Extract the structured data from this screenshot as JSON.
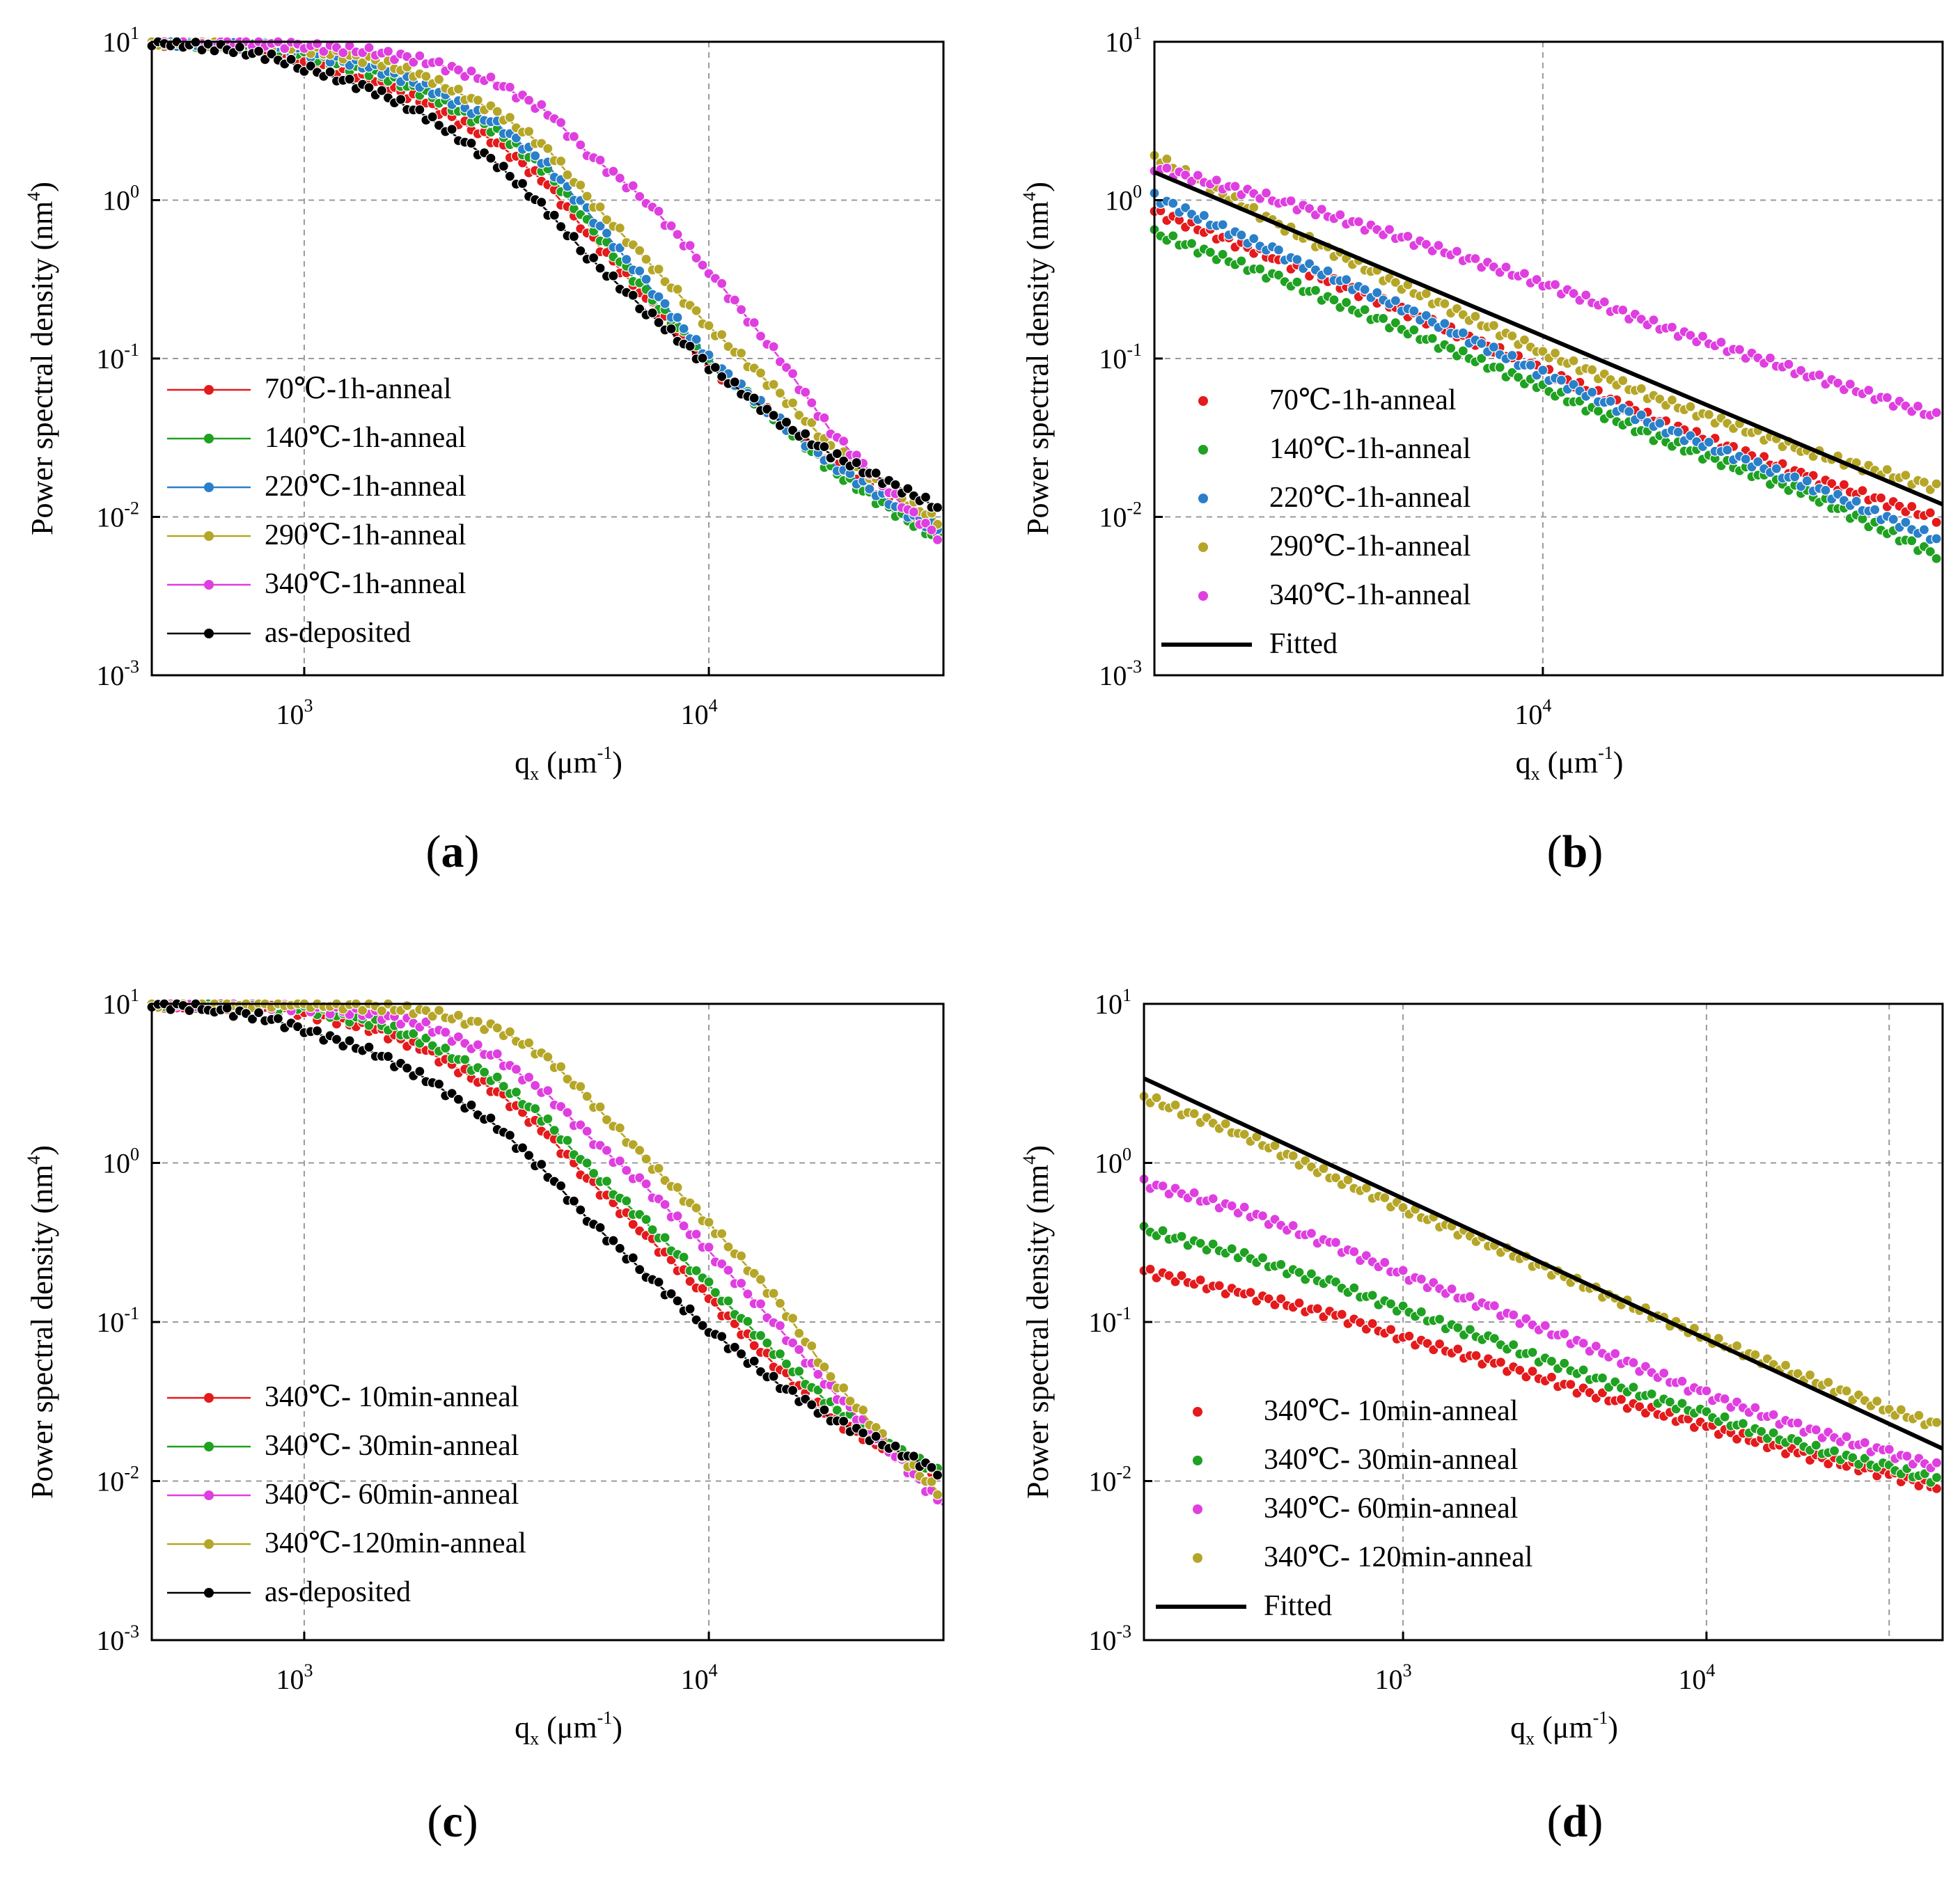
{
  "chart_data": [
    {
      "type": "line",
      "panel": "(a)",
      "title": "",
      "xlabel": "q_x (μm^-1)",
      "ylabel": "Power spectral density (nm^4)",
      "xscale": "log",
      "yscale": "log",
      "xlim": [
        420,
        38000
      ],
      "ylim": [
        0.001,
        10
      ],
      "legend_position": "bottom-left",
      "series": [
        {
          "name": " 70℃-1h-anneal",
          "color": "#e41a1c",
          "style": "line+marker",
          "x": [
            420,
            600,
            800,
            1000,
            1500,
            2000,
            3000,
            4000,
            5000,
            7000,
            10000,
            15000,
            20000,
            30000,
            38000
          ],
          "y": [
            10,
            9.6,
            8.8,
            7.5,
            5.6,
            4.1,
            2.3,
            1.25,
            0.62,
            0.24,
            0.09,
            0.04,
            0.022,
            0.011,
            0.008
          ]
        },
        {
          "name": "140℃-1h-anneal",
          "color": "#1fa121",
          "style": "line+marker",
          "x": [
            420,
            600,
            800,
            1000,
            1500,
            2000,
            3000,
            4000,
            5000,
            7000,
            10000,
            15000,
            20000,
            30000,
            38000
          ],
          "y": [
            10,
            9.7,
            9.1,
            8.2,
            6.3,
            4.7,
            2.7,
            1.5,
            0.72,
            0.26,
            0.095,
            0.04,
            0.02,
            0.01,
            0.007
          ]
        },
        {
          "name": "220℃-1h-anneal",
          "color": "#2a7fc9",
          "style": "line+marker",
          "x": [
            420,
            600,
            800,
            1000,
            1500,
            2000,
            3000,
            4000,
            5000,
            7000,
            10000,
            15000,
            20000,
            30000,
            38000
          ],
          "y": [
            10,
            9.8,
            9.3,
            8.6,
            6.8,
            5.2,
            3.0,
            1.65,
            0.85,
            0.3,
            0.1,
            0.04,
            0.022,
            0.011,
            0.008
          ]
        },
        {
          "name": "290℃-1h-anneal",
          "color": "#b5a628",
          "style": "line+marker",
          "x": [
            420,
            600,
            800,
            1000,
            1500,
            2000,
            3000,
            4000,
            5000,
            7000,
            10000,
            15000,
            20000,
            30000,
            38000
          ],
          "y": [
            10,
            9.9,
            9.5,
            9.0,
            7.6,
            6.0,
            3.6,
            2.1,
            1.05,
            0.42,
            0.16,
            0.06,
            0.028,
            0.013,
            0.009
          ]
        },
        {
          "name": "340℃-1h-anneal",
          "color": "#df3fe0",
          "style": "line+marker",
          "x": [
            420,
            600,
            800,
            1000,
            1500,
            2000,
            3000,
            4000,
            5000,
            7000,
            10000,
            15000,
            20000,
            30000,
            38000
          ],
          "y": [
            10,
            10,
            9.8,
            9.5,
            8.6,
            7.6,
            5.5,
            3.6,
            2.0,
            1.0,
            0.36,
            0.1,
            0.035,
            0.012,
            0.007
          ]
        },
        {
          "name": "as-deposited",
          "color": "#000000",
          "style": "line+marker",
          "x": [
            420,
            600,
            800,
            1000,
            1500,
            2000,
            3000,
            4000,
            5000,
            7000,
            10000,
            15000,
            20000,
            30000,
            38000
          ],
          "y": [
            10,
            9.3,
            8.2,
            6.9,
            4.9,
            3.4,
            1.7,
            0.85,
            0.45,
            0.2,
            0.09,
            0.04,
            0.025,
            0.015,
            0.011
          ]
        }
      ]
    },
    {
      "type": "scatter",
      "panel": "(b)",
      "title": "",
      "xlabel": "q_x (μm^-1)",
      "ylabel": "Power spectral density (nm^4)",
      "xscale": "log",
      "yscale": "log",
      "xlim": [
        2600,
        40000
      ],
      "ylim": [
        0.001,
        10
      ],
      "legend_position": "bottom-left",
      "series": [
        {
          "name": " 70℃-1h-anneal",
          "color": "#e41a1c",
          "style": "marker",
          "x": [
            2600,
            4000,
            6000,
            10000,
            15000,
            25000,
            40000
          ],
          "y": [
            0.85,
            0.42,
            0.21,
            0.085,
            0.04,
            0.018,
            0.0095
          ]
        },
        {
          "name": "140℃-1h-anneal",
          "color": "#1fa121",
          "style": "marker",
          "x": [
            2600,
            4000,
            6000,
            10000,
            15000,
            25000,
            40000
          ],
          "y": [
            0.62,
            0.32,
            0.16,
            0.065,
            0.031,
            0.014,
            0.0055
          ]
        },
        {
          "name": "220℃-1h-anneal",
          "color": "#2a7fc9",
          "style": "marker",
          "x": [
            2600,
            4000,
            6000,
            10000,
            15000,
            25000,
            40000
          ],
          "y": [
            1.05,
            0.46,
            0.22,
            0.08,
            0.037,
            0.016,
            0.007
          ]
        },
        {
          "name": "290℃-1h-anneal",
          "color": "#b5a628",
          "style": "marker",
          "x": [
            2600,
            4000,
            6000,
            10000,
            15000,
            25000,
            40000
          ],
          "y": [
            1.9,
            0.7,
            0.3,
            0.11,
            0.055,
            0.026,
            0.015
          ]
        },
        {
          "name": "340℃-1h-anneal",
          "color": "#df3fe0",
          "style": "marker",
          "x": [
            2600,
            4000,
            6000,
            10000,
            15000,
            25000,
            40000
          ],
          "y": [
            1.6,
            1.0,
            0.6,
            0.3,
            0.16,
            0.08,
            0.042
          ]
        },
        {
          "name": "Fitted",
          "color": "#000000",
          "style": "line",
          "x": [
            2600,
            40000
          ],
          "y": [
            1.5,
            0.012
          ]
        }
      ]
    },
    {
      "type": "line",
      "panel": "(c)",
      "title": "",
      "xlabel": "q_x (μm^-1)",
      "ylabel": "Power spectral density (nm^4)",
      "xscale": "log",
      "yscale": "log",
      "xlim": [
        420,
        38000
      ],
      "ylim": [
        0.001,
        10
      ],
      "legend_position": "bottom-left",
      "series": [
        {
          "name": "340℃-  10min-anneal",
          "color": "#e41a1c",
          "style": "line+marker",
          "x": [
            420,
            600,
            800,
            1000,
            1500,
            2000,
            3000,
            4000,
            5000,
            7000,
            10000,
            15000,
            20000,
            30000,
            38000
          ],
          "y": [
            10,
            9.9,
            9.5,
            8.8,
            6.9,
            5.1,
            2.8,
            1.5,
            0.8,
            0.35,
            0.14,
            0.05,
            0.025,
            0.014,
            0.011
          ]
        },
        {
          "name": "340℃-  30min-anneal",
          "color": "#1fa121",
          "style": "line+marker",
          "x": [
            420,
            600,
            800,
            1000,
            1500,
            2000,
            3000,
            4000,
            5000,
            7000,
            10000,
            15000,
            20000,
            30000,
            38000
          ],
          "y": [
            10,
            9.9,
            9.6,
            9.2,
            7.6,
            5.8,
            3.3,
            1.8,
            0.95,
            0.42,
            0.17,
            0.06,
            0.03,
            0.015,
            0.011
          ]
        },
        {
          "name": "340℃-  60min-anneal",
          "color": "#df3fe0",
          "style": "line+marker",
          "x": [
            420,
            600,
            800,
            1000,
            1500,
            2000,
            3000,
            4000,
            5000,
            7000,
            10000,
            15000,
            20000,
            30000,
            38000
          ],
          "y": [
            10,
            10,
            9.8,
            9.5,
            8.6,
            7.3,
            4.6,
            2.7,
            1.5,
            0.7,
            0.28,
            0.09,
            0.038,
            0.013,
            0.007
          ]
        },
        {
          "name": "340℃-120min-anneal",
          "color": "#b5a628",
          "style": "line+marker",
          "x": [
            420,
            600,
            800,
            1000,
            1500,
            2000,
            3000,
            4000,
            5000,
            7000,
            10000,
            15000,
            20000,
            30000,
            38000
          ],
          "y": [
            10,
            10,
            10,
            10,
            9.6,
            9.0,
            7.0,
            4.6,
            2.6,
            1.05,
            0.42,
            0.13,
            0.045,
            0.014,
            0.008
          ]
        },
        {
          "name": "as-deposited",
          "color": "#000000",
          "style": "line+marker",
          "x": [
            420,
            600,
            800,
            1000,
            1500,
            2000,
            3000,
            4000,
            5000,
            7000,
            10000,
            15000,
            20000,
            30000,
            38000
          ],
          "y": [
            10,
            9.3,
            8.2,
            6.9,
            4.9,
            3.4,
            1.7,
            0.85,
            0.45,
            0.2,
            0.09,
            0.04,
            0.025,
            0.015,
            0.011
          ]
        }
      ]
    },
    {
      "type": "scatter",
      "panel": "(d)",
      "title": "",
      "xlabel": "q_x (μm^-1)",
      "ylabel": "Power spectral density (nm^4)",
      "xscale": "log",
      "yscale": "log",
      "xlim": [
        140,
        60000
      ],
      "ylim": [
        0.001,
        10
      ],
      "legend_position": "bottom-left",
      "series": [
        {
          "name": "340℃-  10min-anneal",
          "color": "#e41a1c",
          "style": "marker",
          "x": [
            140,
            300,
            600,
            1000,
            2000,
            5000,
            10000,
            20000,
            40000,
            60000
          ],
          "y": [
            0.21,
            0.15,
            0.11,
            0.08,
            0.055,
            0.032,
            0.022,
            0.015,
            0.011,
            0.009
          ]
        },
        {
          "name": "340℃-  30min-anneal",
          "color": "#1fa121",
          "style": "marker",
          "x": [
            140,
            300,
            600,
            1000,
            2000,
            5000,
            10000,
            20000,
            40000,
            60000
          ],
          "y": [
            0.38,
            0.26,
            0.17,
            0.12,
            0.075,
            0.04,
            0.026,
            0.017,
            0.012,
            0.01
          ]
        },
        {
          "name": "340℃-  60min-anneal",
          "color": "#df3fe0",
          "style": "marker",
          "x": [
            140,
            300,
            600,
            1000,
            2000,
            5000,
            10000,
            20000,
            40000,
            60000
          ],
          "y": [
            0.75,
            0.5,
            0.3,
            0.2,
            0.12,
            0.06,
            0.035,
            0.022,
            0.015,
            0.012
          ]
        },
        {
          "name": "340℃-  120min-anneal",
          "color": "#b5a628",
          "style": "marker",
          "x": [
            140,
            300,
            600,
            1000,
            2000,
            5000,
            10000,
            20000,
            40000,
            60000
          ],
          "y": [
            2.6,
            1.5,
            0.8,
            0.52,
            0.3,
            0.14,
            0.08,
            0.047,
            0.028,
            0.022
          ]
        },
        {
          "name": "Fitted",
          "color": "#000000",
          "style": "line",
          "x": [
            140,
            60000
          ],
          "y": [
            3.4,
            0.016
          ]
        }
      ]
    }
  ],
  "panel_labels": [
    "(a)",
    "(b)",
    "(c)",
    "(d)"
  ]
}
